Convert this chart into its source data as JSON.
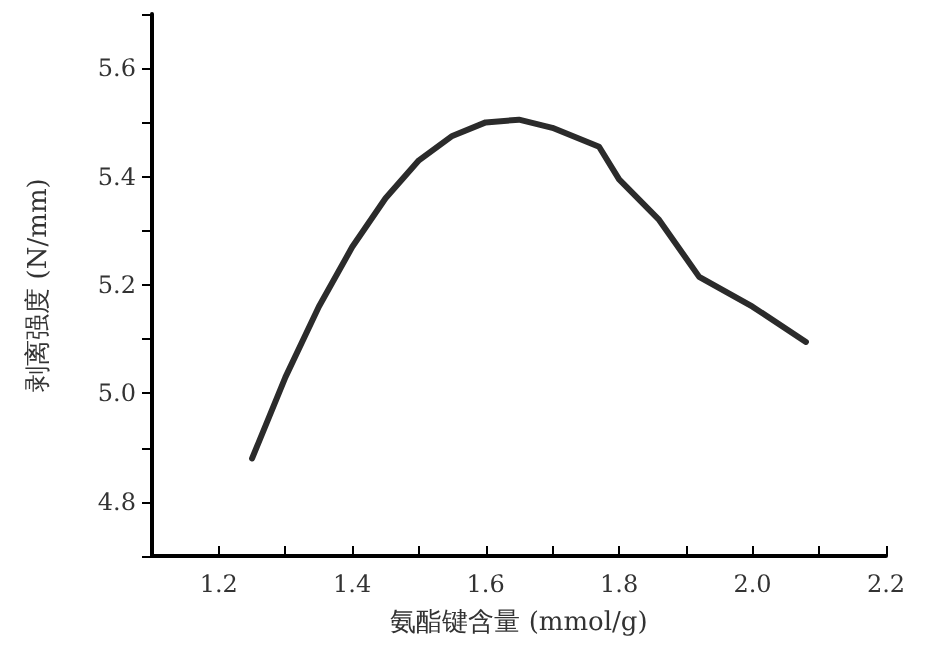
{
  "chart_data": {
    "type": "line",
    "xlabel": "氨酯键含量 (mmol/g)",
    "ylabel": "剥离强度 (N/mm)",
    "x": [
      1.25,
      1.3,
      1.35,
      1.4,
      1.45,
      1.5,
      1.55,
      1.6,
      1.65,
      1.7,
      1.77,
      1.8,
      1.86,
      1.92,
      2.0,
      2.08
    ],
    "series": [
      {
        "color": "#2b2b2b",
        "values": [
          4.88,
          5.03,
          5.16,
          5.27,
          5.36,
          5.43,
          5.475,
          5.5,
          5.505,
          5.49,
          5.455,
          5.395,
          5.32,
          5.215,
          5.16,
          5.095
        ]
      }
    ],
    "xlim": [
      1.1,
      2.2
    ],
    "ylim": [
      4.7,
      5.7
    ],
    "xticks": [
      {
        "value": 1.1,
        "label": null
      },
      1.2,
      {
        "value": 1.3,
        "label": null
      },
      1.4,
      {
        "value": 1.5,
        "label": null
      },
      1.6,
      {
        "value": 1.7,
        "label": null
      },
      1.8,
      {
        "value": 1.9,
        "label": null
      },
      {
        "value": 2.0,
        "label": "2.0"
      },
      {
        "value": 2.1,
        "label": null
      },
      2.2
    ],
    "yticks": [
      {
        "value": 4.7,
        "label": null
      },
      4.8,
      {
        "value": 4.9,
        "label": null
      },
      {
        "value": 5.0,
        "label": "5.0"
      },
      {
        "value": 5.1,
        "label": null
      },
      5.2,
      {
        "value": 5.3,
        "label": null
      },
      5.4,
      {
        "value": 5.5,
        "label": null
      },
      5.6,
      {
        "value": 5.7,
        "label": null
      }
    ],
    "grid": false,
    "marker": "none",
    "line_style": "solid"
  }
}
